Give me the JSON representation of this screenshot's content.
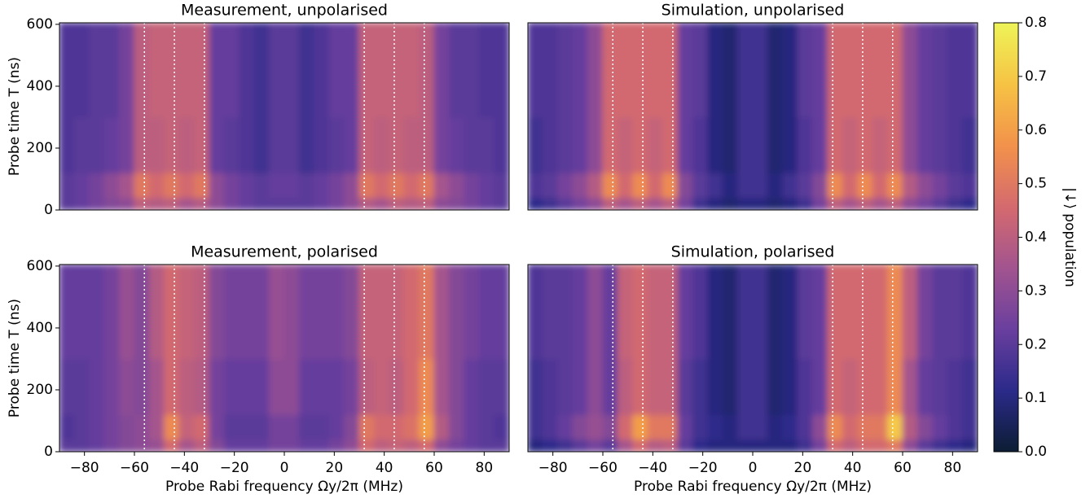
{
  "chart_data": [
    {
      "type": "heatmap",
      "title": "Measurement, unpolarised",
      "ylabel": "Probe time T (ns)",
      "xlim": [
        -90,
        90
      ],
      "ylim": [
        0,
        605
      ],
      "yticks": [
        0,
        200,
        400,
        600
      ],
      "x_bins": [
        -90,
        -84,
        -78,
        -72,
        -66,
        -60,
        -54,
        -48,
        -42,
        -36,
        -30,
        -24,
        -18,
        -12,
        -6,
        0,
        6,
        12,
        18,
        24,
        30,
        36,
        42,
        48,
        54,
        60,
        66,
        72,
        78,
        84,
        90
      ],
      "y_bins": [
        0,
        40,
        120,
        300,
        605
      ],
      "vlines": [
        -56,
        -44,
        -32,
        32,
        44,
        56
      ],
      "values": [
        [
          0.2,
          0.22,
          0.25,
          0.28,
          0.3,
          0.4,
          0.38,
          0.4,
          0.35,
          0.38,
          0.3,
          0.25,
          0.22,
          0.2,
          0.2,
          0.2,
          0.2,
          0.22,
          0.25,
          0.3,
          0.38,
          0.35,
          0.4,
          0.38,
          0.4,
          0.3,
          0.28,
          0.25,
          0.22,
          0.2
        ],
        [
          0.2,
          0.22,
          0.25,
          0.3,
          0.35,
          0.5,
          0.45,
          0.5,
          0.45,
          0.5,
          0.3,
          0.25,
          0.22,
          0.2,
          0.22,
          0.22,
          0.2,
          0.22,
          0.25,
          0.3,
          0.5,
          0.45,
          0.5,
          0.45,
          0.5,
          0.35,
          0.3,
          0.25,
          0.22,
          0.2
        ],
        [
          0.18,
          0.2,
          0.2,
          0.22,
          0.25,
          0.4,
          0.4,
          0.42,
          0.4,
          0.42,
          0.22,
          0.2,
          0.18,
          0.15,
          0.2,
          0.2,
          0.15,
          0.18,
          0.2,
          0.22,
          0.42,
          0.4,
          0.42,
          0.4,
          0.4,
          0.25,
          0.22,
          0.2,
          0.2,
          0.18
        ],
        [
          0.18,
          0.18,
          0.2,
          0.2,
          0.25,
          0.4,
          0.42,
          0.42,
          0.42,
          0.42,
          0.22,
          0.22,
          0.18,
          0.15,
          0.2,
          0.2,
          0.15,
          0.18,
          0.22,
          0.22,
          0.42,
          0.42,
          0.42,
          0.42,
          0.4,
          0.25,
          0.2,
          0.2,
          0.18,
          0.18
        ]
      ]
    },
    {
      "type": "heatmap",
      "title": "Simulation, unpolarised",
      "xlim": [
        -90,
        90
      ],
      "ylim": [
        0,
        605
      ],
      "x_bins": [
        -90,
        -84,
        -78,
        -72,
        -66,
        -60,
        -54,
        -48,
        -42,
        -36,
        -30,
        -24,
        -18,
        -12,
        -6,
        0,
        6,
        12,
        18,
        24,
        30,
        36,
        42,
        48,
        54,
        60,
        66,
        72,
        78,
        84,
        90
      ],
      "y_bins": [
        0,
        40,
        120,
        300,
        605
      ],
      "vlines": [
        -56,
        -44,
        -32,
        32,
        44,
        56
      ],
      "values": [
        [
          0.12,
          0.15,
          0.2,
          0.25,
          0.3,
          0.4,
          0.35,
          0.4,
          0.35,
          0.4,
          0.25,
          0.15,
          0.1,
          0.08,
          0.1,
          0.1,
          0.08,
          0.1,
          0.15,
          0.25,
          0.4,
          0.35,
          0.4,
          0.35,
          0.4,
          0.3,
          0.25,
          0.2,
          0.15,
          0.12
        ],
        [
          0.18,
          0.2,
          0.25,
          0.3,
          0.38,
          0.55,
          0.45,
          0.55,
          0.45,
          0.55,
          0.28,
          0.2,
          0.15,
          0.1,
          0.15,
          0.15,
          0.1,
          0.15,
          0.2,
          0.28,
          0.55,
          0.45,
          0.55,
          0.45,
          0.55,
          0.38,
          0.3,
          0.25,
          0.2,
          0.18
        ],
        [
          0.15,
          0.18,
          0.2,
          0.22,
          0.3,
          0.45,
          0.42,
          0.45,
          0.42,
          0.45,
          0.22,
          0.18,
          0.1,
          0.08,
          0.15,
          0.15,
          0.08,
          0.1,
          0.18,
          0.22,
          0.45,
          0.42,
          0.45,
          0.42,
          0.45,
          0.3,
          0.22,
          0.2,
          0.18,
          0.15
        ],
        [
          0.18,
          0.18,
          0.2,
          0.22,
          0.3,
          0.45,
          0.45,
          0.45,
          0.45,
          0.45,
          0.22,
          0.2,
          0.1,
          0.08,
          0.15,
          0.15,
          0.08,
          0.1,
          0.2,
          0.22,
          0.45,
          0.45,
          0.45,
          0.45,
          0.45,
          0.3,
          0.22,
          0.2,
          0.18,
          0.18
        ]
      ]
    },
    {
      "type": "heatmap",
      "title": "Measurement, polarised",
      "ylabel": "Probe time T (ns)",
      "xlabel": "Probe Rabi frequency Ωy/2π (MHz)",
      "xlim": [
        -90,
        90
      ],
      "ylim": [
        0,
        605
      ],
      "yticks": [
        0,
        200,
        400,
        600
      ],
      "xticks": [
        {
          "value": -80,
          "label": "−80"
        },
        {
          "value": -60,
          "label": "−60"
        },
        {
          "value": -40,
          "label": "−40"
        },
        {
          "value": -20,
          "label": "−20"
        },
        0,
        20,
        40,
        60,
        80
      ],
      "x_bins": [
        -90,
        -84,
        -78,
        -72,
        -66,
        -60,
        -54,
        -48,
        -42,
        -36,
        -30,
        -24,
        -18,
        -12,
        -6,
        0,
        6,
        12,
        18,
        24,
        30,
        36,
        42,
        48,
        54,
        60,
        66,
        72,
        78,
        84,
        90
      ],
      "y_bins": [
        0,
        40,
        120,
        300,
        605
      ],
      "vlines": [
        -56,
        -44,
        -32,
        32,
        44,
        56
      ],
      "values": [
        [
          0.2,
          0.2,
          0.22,
          0.25,
          0.28,
          0.3,
          0.32,
          0.45,
          0.35,
          0.4,
          0.28,
          0.22,
          0.22,
          0.22,
          0.25,
          0.25,
          0.22,
          0.22,
          0.25,
          0.3,
          0.45,
          0.4,
          0.42,
          0.4,
          0.45,
          0.3,
          0.25,
          0.22,
          0.2,
          0.2
        ],
        [
          0.18,
          0.2,
          0.22,
          0.25,
          0.28,
          0.3,
          0.35,
          0.55,
          0.42,
          0.45,
          0.25,
          0.2,
          0.2,
          0.2,
          0.25,
          0.25,
          0.2,
          0.2,
          0.22,
          0.28,
          0.5,
          0.45,
          0.45,
          0.48,
          0.6,
          0.38,
          0.28,
          0.22,
          0.2,
          0.18
        ],
        [
          0.2,
          0.2,
          0.22,
          0.25,
          0.3,
          0.28,
          0.35,
          0.45,
          0.4,
          0.38,
          0.25,
          0.22,
          0.22,
          0.22,
          0.3,
          0.3,
          0.22,
          0.22,
          0.22,
          0.25,
          0.4,
          0.42,
          0.4,
          0.45,
          0.55,
          0.35,
          0.28,
          0.22,
          0.2,
          0.2
        ],
        [
          0.22,
          0.22,
          0.22,
          0.25,
          0.32,
          0.28,
          0.38,
          0.45,
          0.42,
          0.4,
          0.28,
          0.25,
          0.25,
          0.25,
          0.32,
          0.3,
          0.25,
          0.25,
          0.25,
          0.28,
          0.42,
          0.42,
          0.42,
          0.45,
          0.5,
          0.35,
          0.28,
          0.25,
          0.22,
          0.22
        ]
      ]
    },
    {
      "type": "heatmap",
      "title": "Simulation, polarised",
      "xlabel": "Probe Rabi frequency Ωy/2π (MHz)",
      "xlim": [
        -90,
        90
      ],
      "ylim": [
        0,
        605
      ],
      "xticks": [
        {
          "value": -80,
          "label": "−80"
        },
        {
          "value": -60,
          "label": "−60"
        },
        {
          "value": -40,
          "label": "−40"
        },
        {
          "value": -20,
          "label": "−20"
        },
        0,
        20,
        40,
        60,
        80
      ],
      "x_bins": [
        -90,
        -84,
        -78,
        -72,
        -66,
        -60,
        -54,
        -48,
        -42,
        -36,
        -30,
        -24,
        -18,
        -12,
        -6,
        0,
        6,
        12,
        18,
        24,
        30,
        36,
        42,
        48,
        54,
        60,
        66,
        72,
        78,
        84,
        90
      ],
      "y_bins": [
        0,
        40,
        120,
        300,
        605
      ],
      "vlines": [
        -56,
        -44,
        -32,
        32,
        44,
        56
      ],
      "values": [
        [
          0.1,
          0.12,
          0.15,
          0.2,
          0.25,
          0.2,
          0.35,
          0.45,
          0.38,
          0.4,
          0.2,
          0.12,
          0.1,
          0.1,
          0.1,
          0.1,
          0.1,
          0.1,
          0.15,
          0.25,
          0.45,
          0.4,
          0.45,
          0.45,
          0.5,
          0.3,
          0.2,
          0.15,
          0.12,
          0.1
        ],
        [
          0.15,
          0.18,
          0.22,
          0.28,
          0.32,
          0.28,
          0.45,
          0.6,
          0.5,
          0.5,
          0.22,
          0.15,
          0.12,
          0.1,
          0.15,
          0.15,
          0.1,
          0.12,
          0.18,
          0.3,
          0.55,
          0.45,
          0.5,
          0.5,
          0.7,
          0.38,
          0.28,
          0.22,
          0.18,
          0.15
        ],
        [
          0.15,
          0.18,
          0.2,
          0.22,
          0.3,
          0.22,
          0.4,
          0.45,
          0.42,
          0.42,
          0.2,
          0.15,
          0.1,
          0.08,
          0.15,
          0.15,
          0.08,
          0.1,
          0.18,
          0.22,
          0.45,
          0.42,
          0.45,
          0.45,
          0.55,
          0.35,
          0.22,
          0.2,
          0.18,
          0.15
        ],
        [
          0.18,
          0.2,
          0.2,
          0.22,
          0.3,
          0.22,
          0.42,
          0.45,
          0.42,
          0.42,
          0.22,
          0.18,
          0.1,
          0.08,
          0.15,
          0.15,
          0.08,
          0.1,
          0.2,
          0.22,
          0.45,
          0.45,
          0.45,
          0.45,
          0.55,
          0.4,
          0.25,
          0.2,
          0.2,
          0.18
        ]
      ]
    },
    {
      "type": "colorbar",
      "label": "|↓⟩ population",
      "lim": [
        0,
        0.8
      ],
      "ticks": [
        {
          "value": 0,
          "label": "0.0"
        },
        0.1,
        0.2,
        0.3,
        0.4,
        0.5,
        0.6,
        0.7,
        0.8
      ],
      "colors": [
        "#0c1d33",
        "#2b2a8a",
        "#6a3f9e",
        "#a2548f",
        "#d56a6e",
        "#f2924b",
        "#f6c344",
        "#eef458"
      ]
    }
  ]
}
